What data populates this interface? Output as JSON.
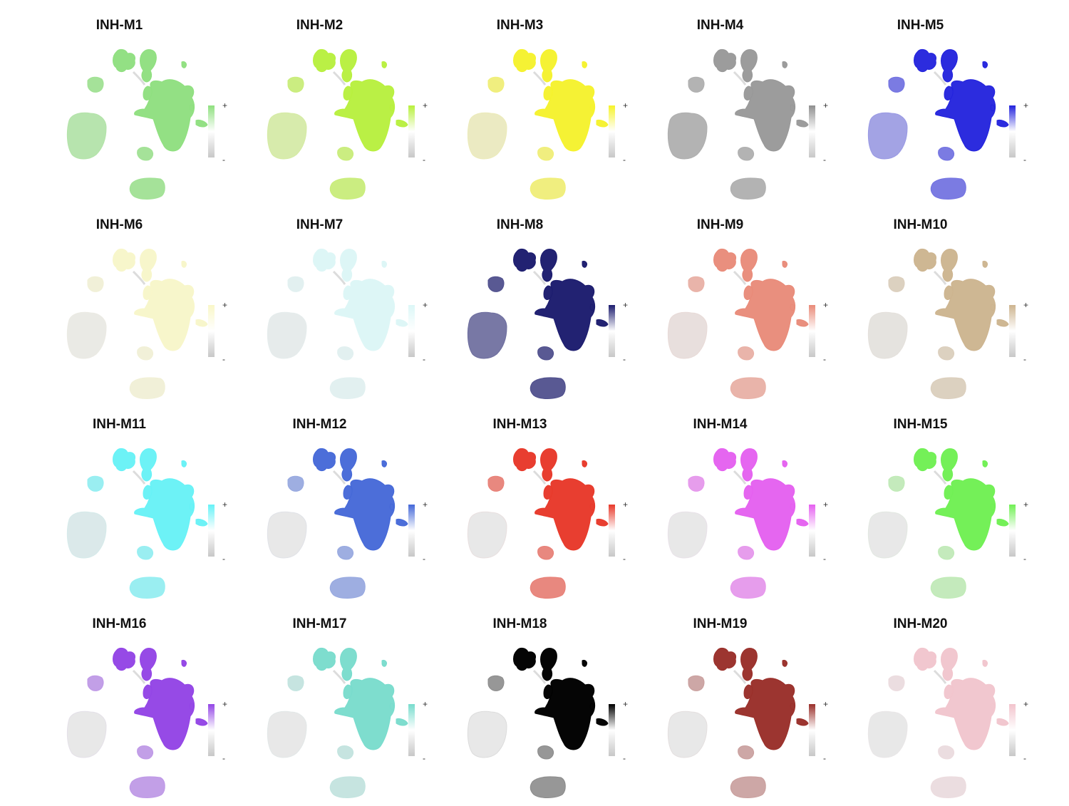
{
  "chart_data": {
    "type": "scatter",
    "description_of_marks": "UMAP feature plots",
    "legend": {
      "high_label": "+",
      "low_label": "-",
      "low_color": "#c8c8c8"
    },
    "panels": [
      {
        "title": "INH-M1",
        "color": "#8fe07f",
        "inh_level": 0.95,
        "left_level": 0.55,
        "small_level": 0.75
      },
      {
        "title": "INH-M2",
        "color": "#b8f03c",
        "inh_level": 0.95,
        "left_level": 0.35,
        "small_level": 0.6
      },
      {
        "title": "INH-M3",
        "color": "#f6f32a",
        "inh_level": 0.95,
        "left_level": 0.2,
        "small_level": 0.55
      },
      {
        "title": "INH-M4",
        "color": "#8f8f8f",
        "inh_level": 0.85,
        "left_level": 0.6,
        "small_level": 0.6
      },
      {
        "title": "INH-M5",
        "color": "#2222dd",
        "inh_level": 0.95,
        "left_level": 0.35,
        "small_level": 0.55
      },
      {
        "title": "INH-M6",
        "color": "#f9f7c8",
        "inh_level": 0.9,
        "left_level": 0.1,
        "small_level": 0.5
      },
      {
        "title": "INH-M7",
        "color": "#dcf7f7",
        "inh_level": 0.9,
        "left_level": 0.2,
        "small_level": 0.5
      },
      {
        "title": "INH-M8",
        "color": "#1c1c6e",
        "inh_level": 0.97,
        "left_level": 0.55,
        "small_level": 0.7
      },
      {
        "title": "INH-M9",
        "color": "#e98a78",
        "inh_level": 0.95,
        "left_level": 0.1,
        "small_level": 0.55
      },
      {
        "title": "INH-M10",
        "color": "#cdb48f",
        "inh_level": 0.95,
        "left_level": 0.1,
        "small_level": 0.45
      },
      {
        "title": "INH-M11",
        "color": "#66f2f7",
        "inh_level": 0.95,
        "left_level": 0.1,
        "small_level": 0.6
      },
      {
        "title": "INH-M12",
        "color": "#4468d8",
        "inh_level": 0.95,
        "left_level": 0.0,
        "small_level": 0.45
      },
      {
        "title": "INH-M13",
        "color": "#e8392a",
        "inh_level": 0.97,
        "left_level": 0.0,
        "small_level": 0.55
      },
      {
        "title": "INH-M14",
        "color": "#e55ff0",
        "inh_level": 0.95,
        "left_level": 0.0,
        "small_level": 0.55
      },
      {
        "title": "INH-M15",
        "color": "#70f054",
        "inh_level": 0.97,
        "left_level": 0.0,
        "small_level": 0.3
      },
      {
        "title": "INH-M16",
        "color": "#9345e6",
        "inh_level": 0.97,
        "left_level": 0.0,
        "small_level": 0.45
      },
      {
        "title": "INH-M17",
        "color": "#78dccd",
        "inh_level": 0.95,
        "left_level": 0.0,
        "small_level": 0.3
      },
      {
        "title": "INH-M18",
        "color": "#000000",
        "inh_level": 0.98,
        "left_level": 0.0,
        "small_level": 0.35
      },
      {
        "title": "INH-M19",
        "color": "#9a2f2a",
        "inh_level": 0.97,
        "left_level": 0.0,
        "small_level": 0.35
      },
      {
        "title": "INH-M20",
        "color": "#f2c3cc",
        "inh_level": 0.9,
        "left_level": 0.0,
        "small_level": 0.3
      }
    ]
  }
}
